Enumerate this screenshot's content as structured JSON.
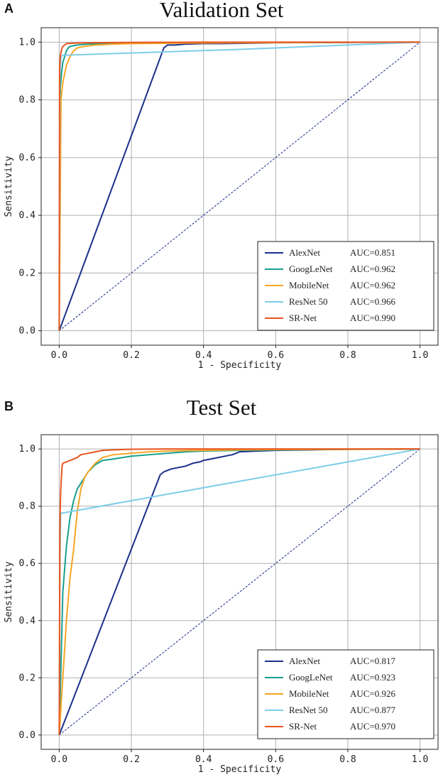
{
  "chart_data": [
    {
      "type": "line",
      "panel_label": "A",
      "title": "Validation Set",
      "xlabel": "1 - Specificity",
      "ylabel": "Sensitivity",
      "xlim": [
        -0.05,
        1.05
      ],
      "ylim": [
        -0.05,
        1.05
      ],
      "xticks": [
        "0.0",
        "0.2",
        "0.4",
        "0.6",
        "0.8",
        "1.0"
      ],
      "yticks": [
        "0.0",
        "0.2",
        "0.4",
        "0.6",
        "0.8",
        "1.0"
      ],
      "grid": true,
      "legend_position": "bottom-right",
      "diagonal": {
        "color": "#1a2a8c",
        "x": [
          0,
          1
        ],
        "y": [
          0,
          1
        ]
      },
      "series": [
        {
          "name": "AlexNet",
          "auc": "AUC=0.851",
          "color": "#1b2f8c",
          "x": [
            0,
            0.29,
            0.3,
            0.32,
            0.35,
            0.4,
            0.45,
            0.5,
            0.6,
            0.8,
            1.0
          ],
          "y": [
            0,
            0.98,
            0.99,
            0.99,
            0.993,
            0.995,
            0.995,
            0.996,
            0.998,
            0.999,
            1.0
          ]
        },
        {
          "name": "GoogLeNet",
          "auc": "AUC=0.962",
          "color": "#17a08c",
          "x": [
            0,
            0.003,
            0.007,
            0.01,
            0.015,
            0.02,
            0.025,
            0.03,
            0.05,
            0.08,
            0.12,
            0.2,
            0.4,
            0.7,
            1.0
          ],
          "y": [
            0,
            0.84,
            0.9,
            0.93,
            0.95,
            0.97,
            0.98,
            0.985,
            0.99,
            0.993,
            0.995,
            0.997,
            0.998,
            0.999,
            1.0
          ]
        },
        {
          "name": "MobileNet",
          "auc": "AUC=0.962",
          "color": "#f5a623",
          "x": [
            0,
            0.005,
            0.01,
            0.015,
            0.02,
            0.03,
            0.04,
            0.05,
            0.07,
            0.1,
            0.15,
            0.2,
            0.4,
            0.7,
            1.0
          ],
          "y": [
            0,
            0.8,
            0.86,
            0.89,
            0.92,
            0.95,
            0.97,
            0.98,
            0.985,
            0.99,
            0.993,
            0.995,
            0.997,
            0.999,
            1.0
          ]
        },
        {
          "name": "ResNet 50",
          "auc": "AUC=0.966",
          "color": "#7ecde8",
          "x": [
            0,
            0.002,
            0.005,
            0.01,
            0.02,
            0.5,
            1.0
          ],
          "y": [
            0,
            0.9,
            0.95,
            0.955,
            0.955,
            0.975,
            1.0
          ]
        },
        {
          "name": "SR-Net",
          "auc": "AUC=0.990",
          "color": "#e8541e",
          "x": [
            0,
            0.001,
            0.002,
            0.004,
            0.006,
            0.008,
            0.01,
            0.015,
            0.02,
            0.05,
            0.1,
            0.2,
            0.4,
            1.0
          ],
          "y": [
            0,
            0.9,
            0.94,
            0.96,
            0.97,
            0.98,
            0.985,
            0.99,
            0.995,
            0.997,
            0.998,
            0.999,
            1.0,
            1.0
          ]
        }
      ]
    },
    {
      "type": "line",
      "panel_label": "B",
      "title": "Test Set",
      "xlabel": "1 - Specificity",
      "ylabel": "Sensitivity",
      "xlim": [
        -0.05,
        1.05
      ],
      "ylim": [
        -0.05,
        1.05
      ],
      "xticks": [
        "0.0",
        "0.2",
        "0.4",
        "0.6",
        "0.8",
        "1.0"
      ],
      "yticks": [
        "0.0",
        "0.2",
        "0.4",
        "0.6",
        "0.8",
        "1.0"
      ],
      "grid": true,
      "legend_position": "bottom-right",
      "diagonal": {
        "color": "#1a2a8c",
        "x": [
          0,
          1
        ],
        "y": [
          0,
          1
        ]
      },
      "series": [
        {
          "name": "AlexNet",
          "auc": "AUC=0.817",
          "color": "#1b2f8c",
          "x": [
            0,
            0.28,
            0.29,
            0.31,
            0.33,
            0.35,
            0.37,
            0.39,
            0.4,
            0.42,
            0.44,
            0.46,
            0.48,
            0.5,
            0.55,
            0.6,
            0.7,
            0.8,
            1.0
          ],
          "y": [
            0,
            0.91,
            0.92,
            0.93,
            0.935,
            0.94,
            0.95,
            0.955,
            0.96,
            0.965,
            0.97,
            0.975,
            0.98,
            0.99,
            0.993,
            0.995,
            0.997,
            0.999,
            1.0
          ]
        },
        {
          "name": "GoogLeNet",
          "auc": "AUC=0.923",
          "color": "#17a08c",
          "x": [
            0,
            0.01,
            0.02,
            0.03,
            0.04,
            0.05,
            0.06,
            0.08,
            0.1,
            0.12,
            0.15,
            0.2,
            0.25,
            0.3,
            0.35,
            0.4,
            0.5,
            0.7,
            1.0
          ],
          "y": [
            0,
            0.5,
            0.66,
            0.76,
            0.82,
            0.86,
            0.88,
            0.92,
            0.945,
            0.96,
            0.965,
            0.975,
            0.98,
            0.985,
            0.99,
            0.993,
            0.995,
            0.998,
            1.0
          ]
        },
        {
          "name": "MobileNet",
          "auc": "AUC=0.926",
          "color": "#f5a623",
          "x": [
            0,
            0.01,
            0.02,
            0.03,
            0.04,
            0.05,
            0.06,
            0.07,
            0.08,
            0.1,
            0.12,
            0.15,
            0.2,
            0.25,
            0.3,
            0.4,
            0.5,
            0.6,
            1.0
          ],
          "y": [
            0,
            0.2,
            0.4,
            0.55,
            0.65,
            0.78,
            0.86,
            0.9,
            0.92,
            0.95,
            0.97,
            0.98,
            0.985,
            0.99,
            0.993,
            0.995,
            0.997,
            0.998,
            1.0
          ]
        },
        {
          "name": "ResNet 50",
          "auc": "AUC=0.877",
          "color": "#7ecde8",
          "x": [
            0,
            0.002,
            0.004,
            1.0
          ],
          "y": [
            0,
            0.6,
            0.775,
            1.0
          ]
        },
        {
          "name": "SR-Net",
          "auc": "AUC=0.970",
          "color": "#e8541e",
          "x": [
            0,
            0.002,
            0.004,
            0.006,
            0.008,
            0.01,
            0.02,
            0.03,
            0.04,
            0.05,
            0.06,
            0.08,
            0.1,
            0.12,
            0.15,
            0.2,
            0.3,
            0.5,
            1.0
          ],
          "y": [
            0,
            0.75,
            0.85,
            0.9,
            0.94,
            0.95,
            0.955,
            0.96,
            0.965,
            0.97,
            0.98,
            0.985,
            0.99,
            0.995,
            0.997,
            0.999,
            1.0,
            1.0,
            1.0
          ]
        }
      ]
    }
  ]
}
